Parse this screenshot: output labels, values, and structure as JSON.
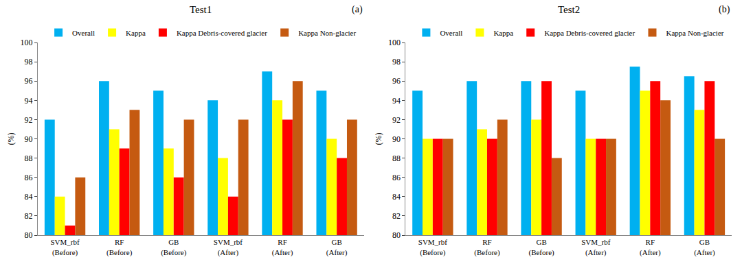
{
  "chart_data": [
    {
      "type": "bar",
      "title": "Test1",
      "annotation": "(a)",
      "y_label": "(%)",
      "categories": [
        "SVM_rbf\n(Before)",
        "RF\n(Before)",
        "GB\n(Before)",
        "SVM_rbf\n(After)",
        "RF\n(After)",
        "GB\n(After)"
      ],
      "series": [
        {
          "name": "Overall",
          "color": "#00b0f0",
          "values": [
            92,
            96,
            95,
            94,
            97,
            95
          ]
        },
        {
          "name": "Kappa",
          "color": "#ffff00",
          "values": [
            84,
            91,
            89,
            88,
            94,
            90
          ]
        },
        {
          "name": "Kappa Debris-covered glacier",
          "color": "#ff0000",
          "values": [
            81,
            89,
            86,
            84,
            92,
            88
          ]
        },
        {
          "name": "Kappa Non-glacier",
          "color": "#c55a11",
          "values": [
            86,
            93,
            92,
            92,
            96,
            92
          ]
        }
      ],
      "ylim": [
        80,
        100
      ],
      "yticks": [
        80,
        82,
        84,
        86,
        88,
        90,
        92,
        94,
        96,
        98,
        100
      ],
      "grid": false,
      "legend": "top"
    },
    {
      "type": "bar",
      "title": "Test2",
      "annotation": "(b)",
      "y_label": "(%)",
      "categories": [
        "SVM_rbf\n(Before)",
        "RF\n(Before)",
        "GB\n(Before)",
        "SVM_rbf\n(After)",
        "RF\n(After)",
        "GB\n(After)"
      ],
      "series": [
        {
          "name": "Overall",
          "color": "#00b0f0",
          "values": [
            95,
            96,
            96,
            95,
            97.5,
            96.5
          ]
        },
        {
          "name": "Kappa",
          "color": "#ffff00",
          "values": [
            90,
            91,
            92,
            90,
            95,
            93
          ]
        },
        {
          "name": "Kappa Debris-covered glacier",
          "color": "#ff0000",
          "values": [
            90,
            90,
            96,
            90,
            96,
            96
          ]
        },
        {
          "name": "Kappa Non-glacier",
          "color": "#c55a11",
          "values": [
            90,
            92,
            88,
            90,
            94,
            90
          ]
        }
      ],
      "ylim": [
        80,
        100
      ],
      "yticks": [
        80,
        82,
        84,
        86,
        88,
        90,
        92,
        94,
        96,
        98,
        100
      ],
      "grid": false,
      "legend": "top"
    }
  ]
}
